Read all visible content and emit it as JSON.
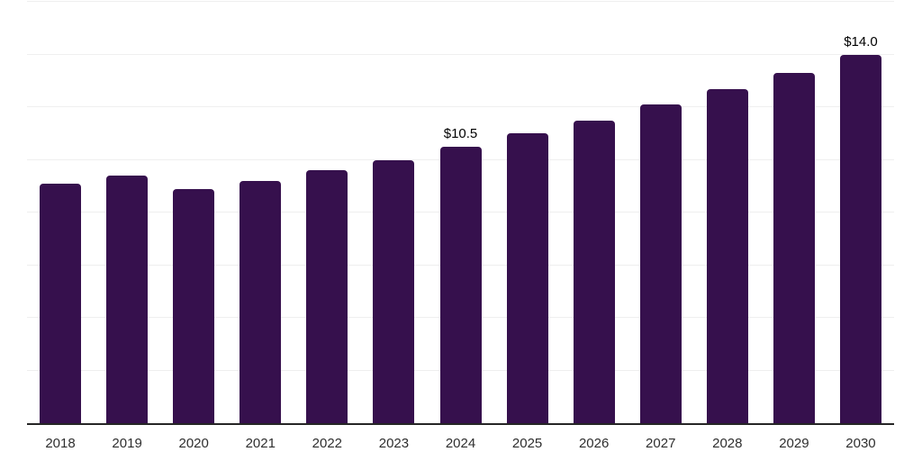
{
  "chart_data": {
    "type": "bar",
    "title": "",
    "xlabel": "",
    "ylabel": "",
    "categories": [
      "2018",
      "2019",
      "2020",
      "2021",
      "2022",
      "2023",
      "2024",
      "2025",
      "2026",
      "2027",
      "2028",
      "2029",
      "2030"
    ],
    "values": [
      9.1,
      9.4,
      8.9,
      9.2,
      9.6,
      10.0,
      10.5,
      11.0,
      11.5,
      12.1,
      12.7,
      13.3,
      14.0
    ],
    "data_labels": {
      "2024": "$10.5",
      "2030": "$14.0"
    },
    "ylim": [
      0,
      16
    ],
    "grid_step": 2,
    "grid": true,
    "legend": false,
    "bar_color": "#36104d",
    "grid_color": "#efefef",
    "axis_color": "#262626",
    "tick_label_color": "#2e2e2e",
    "data_label_color": "#000000",
    "background": "#ffffff"
  }
}
